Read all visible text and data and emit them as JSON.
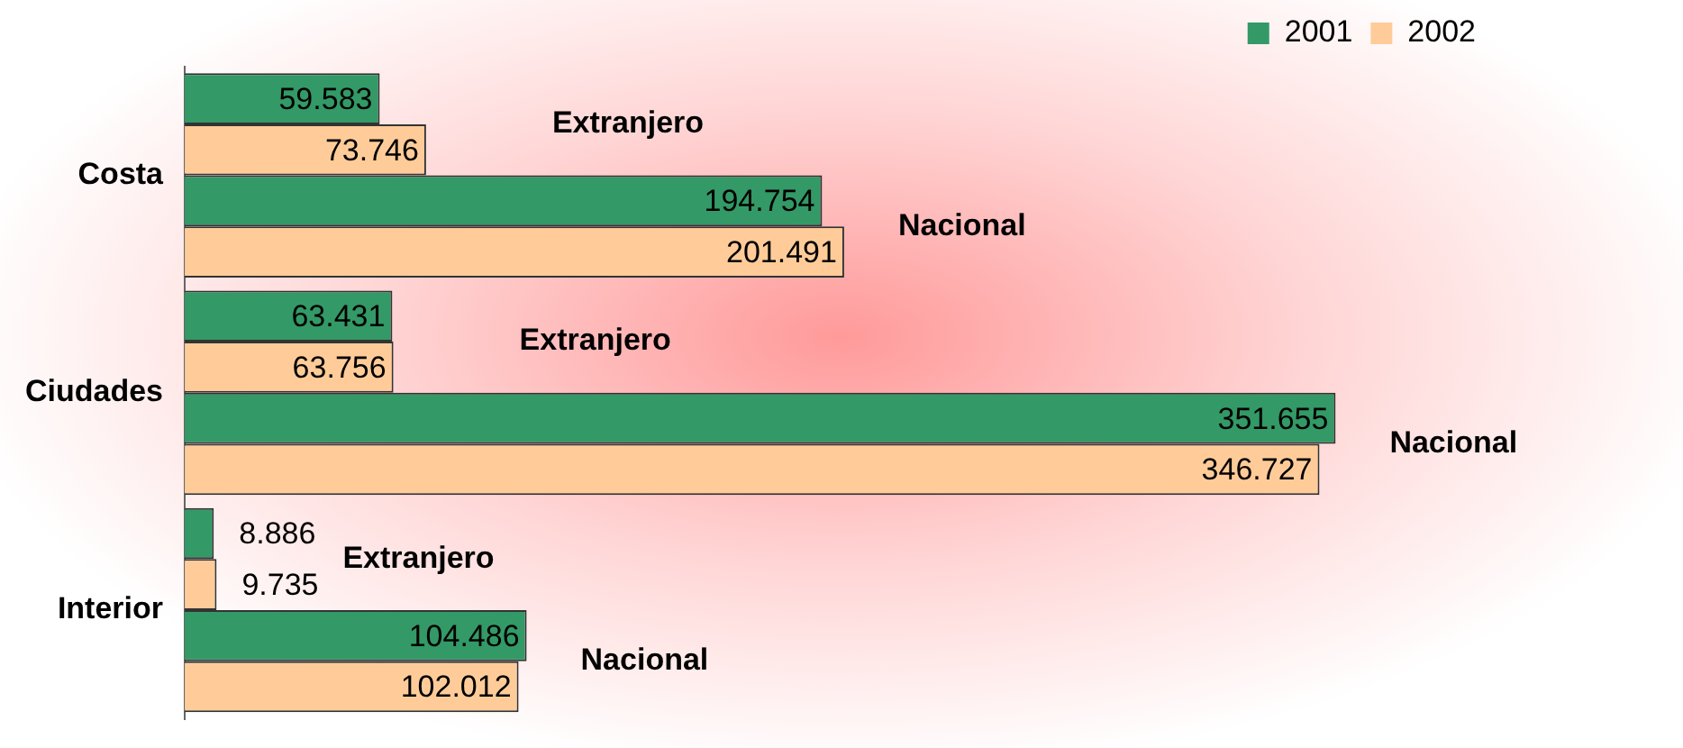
{
  "chart_data": {
    "type": "bar",
    "orientation": "horizontal",
    "categories": [
      "Costa",
      "Ciudades",
      "Interior"
    ],
    "series": [
      {
        "name": "2001",
        "color": "#339966",
        "values": [
          59583,
          63431,
          8886
        ],
        "value_labels": [
          "59.583",
          "63.431",
          "8.886"
        ]
      },
      {
        "name": "2002",
        "color": "#ffcc99",
        "values": [
          73746,
          63756,
          9735
        ],
        "value_labels": [
          "73.746",
          "63.756",
          "9.735"
        ]
      },
      {
        "color": "#339966",
        "values": [
          194754,
          351655,
          104486
        ],
        "value_labels": [
          "194.754",
          "351.655",
          "104.486"
        ]
      },
      {
        "color": "#ffcc99",
        "values": [
          201491,
          346727,
          102012
        ],
        "value_labels": [
          "201.491",
          "346.727",
          "102.012"
        ]
      }
    ],
    "annotations": [
      "Extranjero",
      "Nacional",
      "Extranjero",
      "Nacional",
      "Extranjero",
      "Nacional"
    ],
    "legend": "top right",
    "grid": false
  }
}
